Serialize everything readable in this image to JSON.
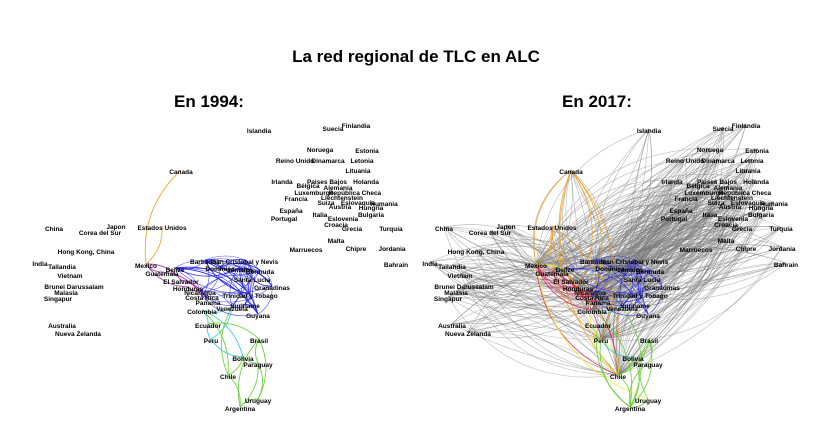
{
  "title": "La red regional de TLC en ALC",
  "panels": [
    {
      "id": "1994",
      "heading": "En 1994:",
      "nodes": [
        "Islandia",
        "Suecia",
        "Finlandia",
        "Noruega",
        "Estonia",
        "Reino Unido",
        "Dinamarca",
        "Letonia",
        "Lituania",
        "Irlanda",
        "Bélgica",
        "Paises Bajos",
        "Holanda",
        "Alemania",
        "Luxemburgo",
        "República Checa",
        "Liechtenstein",
        "Francia",
        "Suiza",
        "Eslovaquia",
        "Austria",
        "Rumania",
        "Hungría",
        "España",
        "Italia",
        "Bulgaria",
        "Portugal",
        "Eslovenia",
        "Croacia",
        "Grecia",
        "Turquía",
        "Malta",
        "Marruecos",
        "Chipre",
        "Jordania",
        "Bahrain",
        "Canada",
        "Estados Unidos",
        "China",
        "Corea del Sur",
        "Japon",
        "Hong Kong, China",
        "India",
        "Tailandia",
        "Vietnam",
        "Brunei Darussalam",
        "Malasia",
        "Singapur",
        "Australia",
        "Nueva Zelanda",
        "Mexico",
        "Belize",
        "Guatemala",
        "El Salvador",
        "Honduras",
        "Nicaragua",
        "Costa Rica",
        "Panama",
        "Colombia",
        "Venezuela",
        "Barbados",
        "San Cristobal y Nevis",
        "Ecuador",
        "Peru",
        "Brasil",
        "Bolivia",
        "Paraguay",
        "Chile",
        "Uruguay",
        "Argentina",
        "Guyana",
        "Suriname",
        "Trinidad y Tobago",
        "Granadinas",
        "Santa Lucia",
        "Dominica",
        "Jamaica",
        "Bermuda"
      ]
    },
    {
      "id": "2017",
      "heading": "En 2017:",
      "nodes": [
        "Islandia",
        "Suecia",
        "Finlandia",
        "Noruega",
        "Estonia",
        "Reino Unido",
        "Dinamarca",
        "Letonia",
        "Lituania",
        "Irlanda",
        "Bélgica",
        "Paises Bajos",
        "Holanda",
        "Alemania",
        "Luxemburgo",
        "República Checa",
        "Liechtenstein",
        "Francia",
        "Suiza",
        "Eslovaquia",
        "Austria",
        "Rumania",
        "Hungría",
        "España",
        "Italia",
        "Bulgaria",
        "Portugal",
        "Eslovenia",
        "Croacia",
        "Grecia",
        "Turquía",
        "Malta",
        "Marruecos",
        "Chipre",
        "Jordania",
        "Bahrain",
        "Canada",
        "Estados Unidos",
        "China",
        "Corea del Sur",
        "Japon",
        "Hong Kong, China",
        "India",
        "Tailandia",
        "Vietnam",
        "Brunei Darussalam",
        "Malasia",
        "Singapur",
        "Australia",
        "Nueva Zelanda",
        "Mexico",
        "Belize",
        "Guatemala",
        "El Salvador",
        "Honduras",
        "Nicaragua",
        "Costa Rica",
        "Panama",
        "Colombia",
        "Venezuela",
        "Barbados",
        "San Cristobal y Nevis",
        "Ecuador",
        "Peru",
        "Brasil",
        "Bolivia",
        "Paraguay",
        "Chile",
        "Uruguay",
        "Argentina",
        "Guyana",
        "Suriname",
        "Trinidad y Tobago",
        "Granadinas",
        "Santa Lucia",
        "Dominica",
        "Jamaica",
        "Bermuda"
      ]
    }
  ],
  "edge_colors": {
    "americas": "#f0a020",
    "caribbean": "#2222dd",
    "central": "#aa22aa",
    "andean": "#22cccc",
    "south": "#66cc33",
    "mexico_pacific": "#dd2255",
    "yellow": "#eeee33",
    "world": "#777777"
  },
  "edges_1994": [
    [
      "Canada",
      "Mexico",
      "americas"
    ],
    [
      "Estados Unidos",
      "Mexico",
      "americas"
    ],
    [
      "Mexico",
      "Guatemala",
      "central"
    ],
    [
      "Mexico",
      "El Salvador",
      "central"
    ],
    [
      "Mexico",
      "Honduras",
      "central"
    ],
    [
      "Guatemala",
      "Costa Rica",
      "central"
    ],
    [
      "Honduras",
      "Nicaragua",
      "central"
    ],
    [
      "El Salvador",
      "Panama",
      "central"
    ],
    [
      "Barbados",
      "Jamaica",
      "caribbean"
    ],
    [
      "Barbados",
      "Guyana",
      "caribbean"
    ],
    [
      "Barbados",
      "Trinidad y Tobago",
      "caribbean"
    ],
    [
      "San Cristobal y Nevis",
      "Santa Lucia",
      "caribbean"
    ],
    [
      "San Cristobal y Nevis",
      "Dominica",
      "caribbean"
    ],
    [
      "Jamaica",
      "Granadinas",
      "caribbean"
    ],
    [
      "Belize",
      "Jamaica",
      "caribbean"
    ],
    [
      "Belize",
      "Trinidad y Tobago",
      "caribbean"
    ],
    [
      "Guyana",
      "Suriname",
      "caribbean"
    ],
    [
      "Dominica",
      "Bermuda",
      "caribbean"
    ],
    [
      "Santa Lucia",
      "Granadinas",
      "caribbean"
    ],
    [
      "Barbados",
      "Santa Lucia",
      "caribbean"
    ],
    [
      "Jamaica",
      "Trinidad y Tobago",
      "caribbean"
    ],
    [
      "Belize",
      "Guyana",
      "caribbean"
    ],
    [
      "Colombia",
      "Venezuela",
      "andean"
    ],
    [
      "Colombia",
      "Ecuador",
      "andean"
    ],
    [
      "Ecuador",
      "Peru",
      "andean"
    ],
    [
      "Venezuela",
      "Peru",
      "andean"
    ],
    [
      "Peru",
      "Bolivia",
      "andean"
    ],
    [
      "Colombia",
      "Bolivia",
      "andean"
    ],
    [
      "Brasil",
      "Paraguay",
      "south"
    ],
    [
      "Brasil",
      "Uruguay",
      "south"
    ],
    [
      "Brasil",
      "Argentina",
      "south"
    ],
    [
      "Paraguay",
      "Argentina",
      "south"
    ],
    [
      "Uruguay",
      "Argentina",
      "south"
    ],
    [
      "Paraguay",
      "Uruguay",
      "south"
    ],
    [
      "Chile",
      "Bolivia",
      "south"
    ],
    [
      "Chile",
      "Argentina",
      "south"
    ],
    [
      "Bolivia",
      "Paraguay",
      "south"
    ],
    [
      "Ecuador",
      "Brasil",
      "south"
    ],
    [
      "Venezuela",
      "Chile",
      "south"
    ],
    [
      "Colombia",
      "Chile",
      "south"
    ]
  ]
}
